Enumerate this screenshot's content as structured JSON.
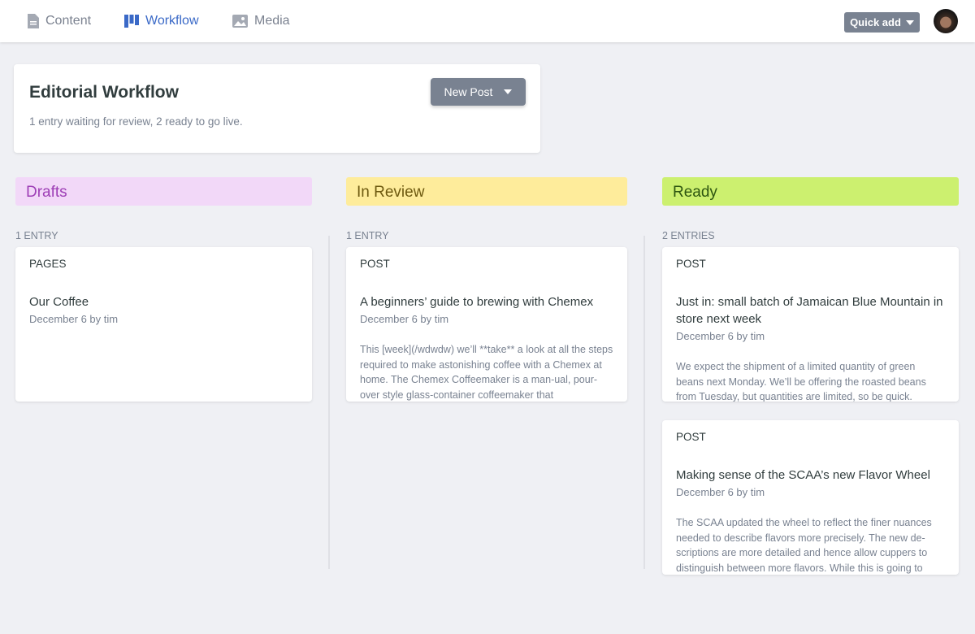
{
  "topbar": {
    "nav": [
      {
        "label": "Content",
        "icon": "document-icon"
      },
      {
        "label": "Workflow",
        "icon": "workflow-icon",
        "active": true
      },
      {
        "label": "Media",
        "icon": "image-icon"
      }
    ],
    "quick_add": "Quick add"
  },
  "header": {
    "title": "Editorial Workflow",
    "subtitle": "1 entry waiting for review, 2 ready to go live.",
    "new_post": "New Post"
  },
  "columns": [
    {
      "title": "Drafts",
      "color": "#f2d8f8",
      "text_color": "#9e3fb6",
      "count": "1 entry",
      "cards": [
        {
          "type": "Pages",
          "title": "Our Coffee",
          "meta": "December 6 by tim",
          "body": ""
        }
      ]
    },
    {
      "title": "In Review",
      "color": "#feec9b",
      "text_color": "#6e5a10",
      "count": "1 entry",
      "cards": [
        {
          "type": "Post",
          "title": "A beginners’ guide to brewing with Chemex",
          "meta": "December 6 by tim",
          "body": "This [week](/wdwdw) we’ll **take** a look at all the steps required to make astonishing coffee with a Chemex at home. The Chemex Coffeemaker is a man-ual, pour-over style glass-container coffeemaker that"
        }
      ]
    },
    {
      "title": "Ready",
      "color": "#ccf06f",
      "text_color": "#2e5611",
      "count": "2 entries",
      "cards": [
        {
          "type": "Post",
          "title": "Just in: small batch of Jamaican Blue Mountain in store next week",
          "meta": "December 6 by tim",
          "body": "We expect the shipment of a limited quantity of green beans next Monday. We’ll be offering the roasted beans from Tuesday, but quantities are limited, so be quick."
        },
        {
          "type": "Post",
          "title": "Making sense of the SCAA’s new Flavor Wheel",
          "meta": "December 6 by tim",
          "body": "The SCAA updated the wheel to reflect the finer nuances needed to describe flavors more precisely. The new de-scriptions are more detailed and hence allow cuppers to distinguish between more flavors. While this is going to"
        }
      ]
    }
  ]
}
